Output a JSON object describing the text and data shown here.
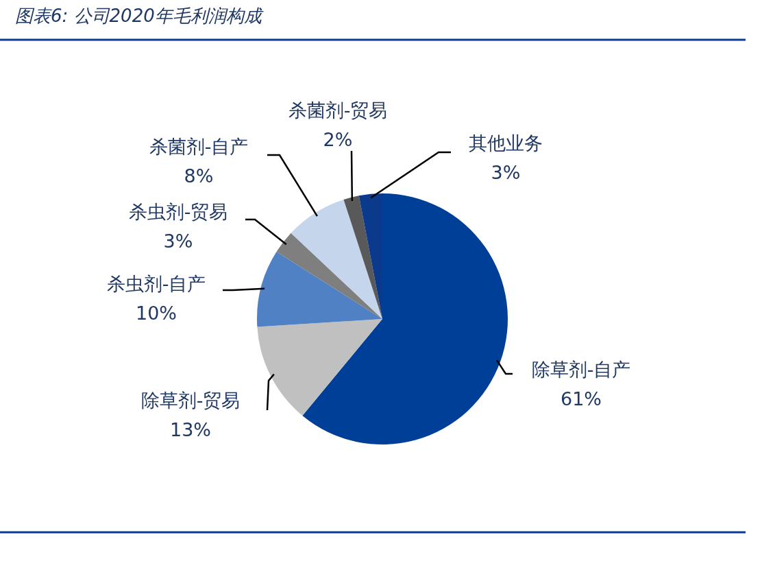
{
  "chart_data": {
    "type": "pie",
    "title": "图表6: 公司2020年毛利润构成",
    "categories": [
      "除草剂-自产",
      "除草剂-贸易",
      "杀虫剂-自产",
      "杀虫剂-贸易",
      "杀菌剂-自产",
      "杀菌剂-贸易",
      "其他业务"
    ],
    "values": [
      61,
      13,
      10,
      3,
      8,
      2,
      3
    ],
    "colors": [
      "#003f98",
      "#c0c0c0",
      "#4f81c4",
      "#7f7f7f",
      "#c5d5ec",
      "#595959",
      "#0b3a8c"
    ],
    "value_labels": [
      "61%",
      "13%",
      "10%",
      "3%",
      "8%",
      "2%",
      "3%"
    ]
  }
}
